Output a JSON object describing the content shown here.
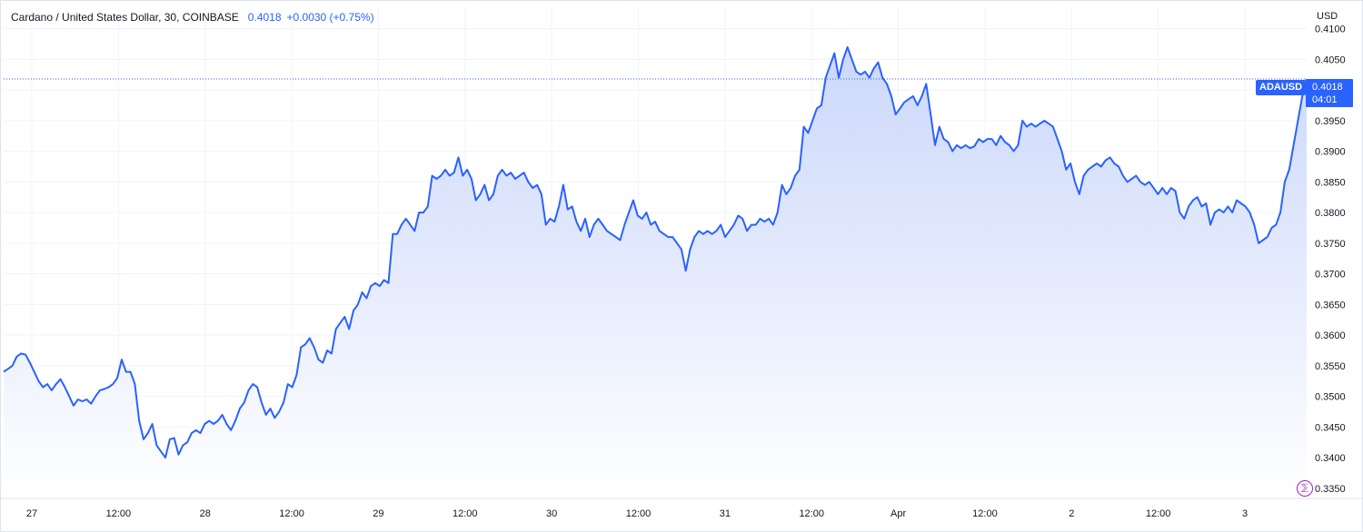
{
  "legend": {
    "title": "Cardano / United States Dollar, 30, COINBASE",
    "last": "0.4018",
    "change": "+0.0030 (+0.75%)"
  },
  "price_scale": {
    "currency": "USD"
  },
  "price_tag": {
    "symbol": "ADAUSD",
    "price": "0.4018",
    "countdown": "04:01"
  },
  "badge": {
    "glyph": "⅀"
  },
  "colors": {
    "line": "#2962ff",
    "area_top": "#c9d6fb",
    "area_bottom": "#ffffff",
    "grid": "#f0f3fa",
    "text": "#131722"
  },
  "chart_data": {
    "type": "area",
    "symbol": "ADAUSD",
    "title": "Cardano / United States Dollar, 30, COINBASE",
    "interval": "30",
    "exchange": "COINBASE",
    "ylim": [
      0.3335,
      0.4135
    ],
    "y_ticks": [
      "0.3350",
      "0.3400",
      "0.3450",
      "0.3500",
      "0.3550",
      "0.3600",
      "0.3650",
      "0.3700",
      "0.3750",
      "0.3800",
      "0.3850",
      "0.3900",
      "0.3950",
      "0.4000",
      "0.4050",
      "0.4100"
    ],
    "x_ticks": [
      "27",
      "12:00",
      "28",
      "12:00",
      "29",
      "12:00",
      "30",
      "12:00",
      "31",
      "12:00",
      "Apr",
      "12:00",
      "2",
      "12:00",
      "3"
    ],
    "grid": true,
    "last_price": 0.4018,
    "series": [
      {
        "values": [
          0.354,
          0.3545,
          0.355,
          0.3565,
          0.357,
          0.3568,
          0.3555,
          0.354,
          0.3525,
          0.3515,
          0.352,
          0.351,
          0.352,
          0.3528,
          0.3515,
          0.35,
          0.3485,
          0.3495,
          0.3492,
          0.3495,
          0.3488,
          0.35,
          0.351,
          0.3512,
          0.3515,
          0.352,
          0.353,
          0.356,
          0.354,
          0.354,
          0.352,
          0.346,
          0.343,
          0.344,
          0.3455,
          0.342,
          0.341,
          0.34,
          0.343,
          0.3432,
          0.3405,
          0.342,
          0.3425,
          0.344,
          0.3445,
          0.344,
          0.3455,
          0.346,
          0.3455,
          0.346,
          0.347,
          0.3455,
          0.3445,
          0.346,
          0.348,
          0.349,
          0.351,
          0.352,
          0.3515,
          0.349,
          0.347,
          0.348,
          0.3465,
          0.3475,
          0.349,
          0.352,
          0.3515,
          0.3535,
          0.358,
          0.3585,
          0.3595,
          0.358,
          0.356,
          0.3555,
          0.3575,
          0.357,
          0.361,
          0.362,
          0.363,
          0.361,
          0.364,
          0.365,
          0.367,
          0.366,
          0.368,
          0.3685,
          0.368,
          0.369,
          0.3685,
          0.3765,
          0.3765,
          0.378,
          0.379,
          0.378,
          0.377,
          0.38,
          0.38,
          0.381,
          0.386,
          0.3855,
          0.386,
          0.387,
          0.386,
          0.3865,
          0.389,
          0.386,
          0.387,
          0.3855,
          0.382,
          0.383,
          0.3845,
          0.382,
          0.383,
          0.386,
          0.387,
          0.386,
          0.3865,
          0.3855,
          0.386,
          0.3865,
          0.385,
          0.384,
          0.3845,
          0.383,
          0.378,
          0.379,
          0.3785,
          0.381,
          0.3845,
          0.3805,
          0.381,
          0.3785,
          0.377,
          0.379,
          0.376,
          0.378,
          0.379,
          0.378,
          0.377,
          0.3765,
          0.376,
          0.3755,
          0.378,
          0.38,
          0.382,
          0.3795,
          0.379,
          0.38,
          0.378,
          0.3785,
          0.377,
          0.3765,
          0.376,
          0.376,
          0.375,
          0.374,
          0.3705,
          0.374,
          0.376,
          0.377,
          0.3765,
          0.377,
          0.3765,
          0.377,
          0.378,
          0.376,
          0.377,
          0.378,
          0.3795,
          0.379,
          0.377,
          0.378,
          0.378,
          0.379,
          0.3785,
          0.379,
          0.378,
          0.38,
          0.3845,
          0.383,
          0.384,
          0.386,
          0.387,
          0.394,
          0.393,
          0.395,
          0.397,
          0.3975,
          0.402,
          0.404,
          0.406,
          0.402,
          0.405,
          0.407,
          0.405,
          0.403,
          0.4025,
          0.403,
          0.402,
          0.4035,
          0.4045,
          0.402,
          0.401,
          0.399,
          0.396,
          0.397,
          0.398,
          0.3985,
          0.399,
          0.3975,
          0.399,
          0.401,
          0.396,
          0.391,
          0.394,
          0.392,
          0.3915,
          0.39,
          0.391,
          0.3905,
          0.391,
          0.3905,
          0.3908,
          0.392,
          0.3915,
          0.392,
          0.392,
          0.391,
          0.3925,
          0.3915,
          0.391,
          0.39,
          0.391,
          0.395,
          0.394,
          0.3945,
          0.394,
          0.3945,
          0.395,
          0.3945,
          0.394,
          0.392,
          0.39,
          0.387,
          0.388,
          0.385,
          0.383,
          0.386,
          0.387,
          0.3875,
          0.388,
          0.3875,
          0.3885,
          0.389,
          0.388,
          0.3875,
          0.386,
          0.385,
          0.3855,
          0.386,
          0.385,
          0.3845,
          0.385,
          0.384,
          0.383,
          0.384,
          0.383,
          0.384,
          0.3835,
          0.38,
          0.379,
          0.381,
          0.382,
          0.3825,
          0.381,
          0.3815,
          0.378,
          0.38,
          0.3805,
          0.38,
          0.381,
          0.38,
          0.382,
          0.3815,
          0.381,
          0.38,
          0.378,
          0.375,
          0.3755,
          0.376,
          0.3775,
          0.378,
          0.38,
          0.385,
          0.387,
          0.391,
          0.395,
          0.399,
          0.4018
        ]
      }
    ]
  }
}
